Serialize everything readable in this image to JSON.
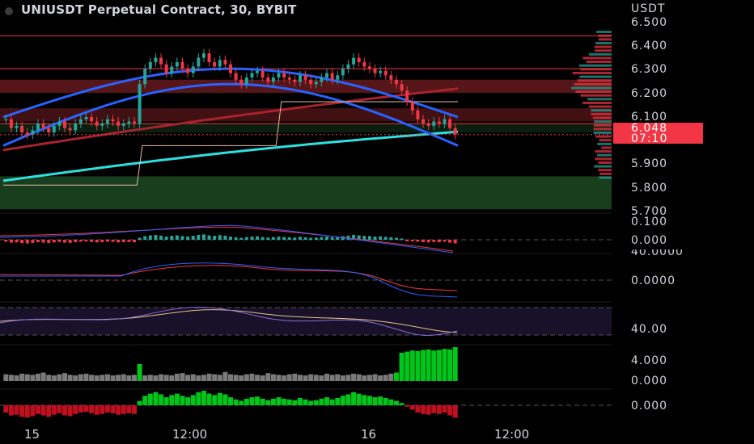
{
  "title": "UNIUSDT Perpetual Contract, 30, BYBIT",
  "currency": "USDT",
  "price_axis": [
    "6.500",
    "6.400",
    "6.300",
    "6.200",
    "6.100",
    "5.900",
    "5.800",
    "5.700"
  ],
  "last_price": "6.048",
  "countdown": "07:10",
  "indicator_axes": {
    "macd": [
      "0.100",
      "0.000"
    ],
    "osc2": [
      "40.0000",
      "0.0000"
    ],
    "rsi": [
      "40.00"
    ],
    "volume": [
      "4.000",
      "0.000"
    ],
    "hist": [
      "0.000"
    ]
  },
  "time_axis": [
    "15",
    "12:00",
    "16",
    "12:00"
  ],
  "colors": {
    "bull": "#26a69a",
    "bear": "#f23645",
    "band_blue": "#2962ff",
    "ma_cyan": "#2de0e0",
    "ma_red": "#a8232b",
    "zone_red": "#6b1a1e",
    "zone_green": "#1e4d25",
    "volume_green": "#00c51a",
    "volume_gray": "#7a7a7a"
  },
  "chart_data": {
    "type": "candlestick",
    "closes": [
      6.12,
      6.08,
      6.09,
      6.06,
      6.05,
      6.07,
      6.1,
      6.08,
      6.06,
      6.09,
      6.11,
      6.08,
      6.07,
      6.1,
      6.12,
      6.13,
      6.11,
      6.09,
      6.1,
      6.12,
      6.11,
      6.09,
      6.1,
      6.11,
      6.1,
      6.28,
      6.35,
      6.38,
      6.4,
      6.37,
      6.33,
      6.36,
      6.38,
      6.35,
      6.33,
      6.36,
      6.4,
      6.42,
      6.38,
      6.36,
      6.39,
      6.37,
      6.33,
      6.3,
      6.28,
      6.31,
      6.33,
      6.34,
      6.31,
      6.29,
      6.31,
      6.33,
      6.31,
      6.3,
      6.29,
      6.32,
      6.3,
      6.28,
      6.29,
      6.31,
      6.33,
      6.3,
      6.32,
      6.35,
      6.37,
      6.4,
      6.38,
      6.36,
      6.35,
      6.33,
      6.34,
      6.32,
      6.3,
      6.28,
      6.25,
      6.2,
      6.16,
      6.12,
      6.1,
      6.09,
      6.11,
      6.1,
      6.12,
      6.08,
      6.05
    ],
    "volume": [
      1.2,
      1.1,
      1.0,
      1.3,
      1.2,
      1.1,
      1.3,
      1.5,
      1.1,
      1.0,
      1.2,
      1.4,
      1.1,
      1.0,
      1.2,
      1.3,
      1.1,
      1.0,
      1.1,
      1.2,
      1.0,
      1.1,
      1.2,
      1.0,
      1.1,
      3.0,
      1.0,
      1.1,
      1.0,
      1.2,
      1.1,
      1.0,
      1.3,
      1.4,
      1.1,
      1.2,
      1.0,
      1.1,
      1.3,
      1.2,
      1.1,
      1.6,
      1.2,
      1.1,
      1.0,
      1.2,
      1.3,
      1.1,
      1.0,
      1.4,
      1.2,
      1.1,
      1.0,
      1.2,
      1.3,
      1.1,
      1.0,
      1.2,
      1.1,
      1.0,
      1.3,
      1.1,
      1.2,
      1.0,
      1.1,
      1.3,
      1.2,
      1.0,
      1.1,
      1.2,
      1.0,
      1.1,
      1.3,
      1.5,
      5.0,
      5.2,
      5.4,
      5.3,
      5.5,
      5.6,
      5.4,
      5.5,
      5.7,
      5.6,
      6.0
    ],
    "ylim": [
      5.7,
      6.56
    ],
    "levels": [
      6.5,
      6.35,
      6.1
    ]
  }
}
